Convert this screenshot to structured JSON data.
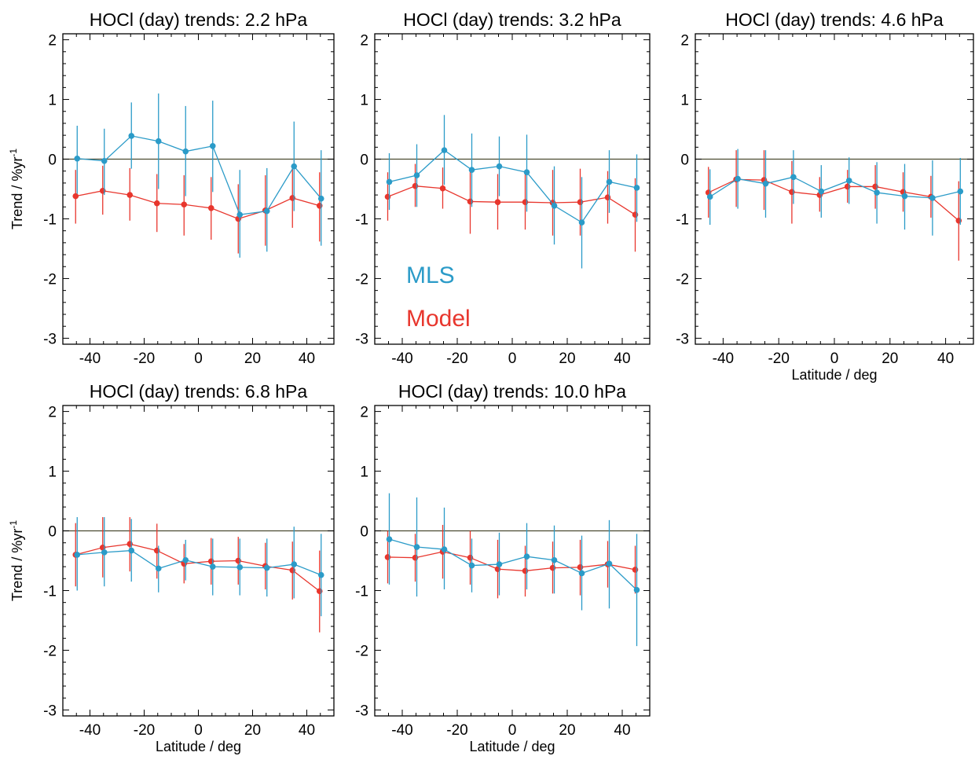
{
  "colors": {
    "mls": "#2b9bc8",
    "model": "#e8362d",
    "zero_line": "#4a4a30",
    "frame": "#000000"
  },
  "legend": {
    "mls": "MLS",
    "model": "Model"
  },
  "chart_data": [
    {
      "type": "line",
      "title": "HOCl (day) trends: 2.2 hPa",
      "xlabel": "",
      "ylabel": "Trend / %yr",
      "ylabel_sup": "-1",
      "xlim": [
        -50,
        50
      ],
      "ylim": [
        -3.1,
        2.1
      ],
      "xticks": [
        -40,
        -20,
        0,
        20,
        40
      ],
      "yticks": [
        -3,
        -2,
        -1,
        0,
        1,
        2
      ],
      "grid": false,
      "x": [
        -45,
        -35,
        -25,
        -15,
        -5,
        5,
        15,
        25,
        35,
        45
      ],
      "series": [
        {
          "key": "mls",
          "name": "MLS",
          "values": [
            0.01,
            -0.03,
            0.39,
            0.3,
            0.13,
            0.22,
            -0.93,
            -0.87,
            -0.12,
            -0.66
          ],
          "err_low": [
            -0.58,
            -0.6,
            -0.16,
            -0.5,
            -0.62,
            -0.55,
            -1.65,
            -1.55,
            -0.87,
            -1.45
          ],
          "err_high": [
            0.56,
            0.51,
            0.95,
            1.1,
            0.89,
            0.98,
            -0.18,
            -0.15,
            0.63,
            0.15
          ]
        },
        {
          "key": "model",
          "name": "Model",
          "values": [
            -0.62,
            -0.53,
            -0.6,
            -0.74,
            -0.76,
            -0.82,
            -1.0,
            -0.86,
            -0.65,
            -0.78
          ],
          "err_low": [
            -1.08,
            -0.93,
            -1.03,
            -1.22,
            -1.28,
            -1.35,
            -1.58,
            -1.45,
            -1.15,
            -1.38
          ],
          "err_high": [
            -0.18,
            -0.11,
            -0.15,
            -0.25,
            -0.27,
            -0.3,
            -0.42,
            -0.27,
            -0.14,
            -0.22
          ]
        }
      ]
    },
    {
      "type": "line",
      "title": "HOCl (day) trends: 3.2 hPa",
      "xlabel": "",
      "ylabel": "",
      "xlim": [
        -50,
        50
      ],
      "ylim": [
        -3.1,
        2.1
      ],
      "xticks": [
        -40,
        -20,
        0,
        20,
        40
      ],
      "yticks": [
        -3,
        -2,
        -1,
        0,
        1,
        2
      ],
      "grid": false,
      "x": [
        -45,
        -35,
        -25,
        -15,
        -5,
        5,
        15,
        25,
        35,
        45
      ],
      "series": [
        {
          "key": "mls",
          "name": "MLS",
          "values": [
            -0.38,
            -0.27,
            0.15,
            -0.18,
            -0.12,
            -0.22,
            -0.78,
            -1.06,
            -0.38,
            -0.48
          ],
          "err_low": [
            -0.85,
            -0.8,
            -0.43,
            -0.8,
            -0.62,
            -0.88,
            -1.43,
            -1.83,
            -0.9,
            -1.05
          ],
          "err_high": [
            0.1,
            0.25,
            0.74,
            0.43,
            0.38,
            0.41,
            -0.12,
            -0.3,
            0.15,
            0.08
          ]
        },
        {
          "key": "model",
          "name": "Model",
          "values": [
            -0.63,
            -0.45,
            -0.49,
            -0.71,
            -0.72,
            -0.72,
            -0.73,
            -0.72,
            -0.64,
            -0.93
          ],
          "err_low": [
            -1.03,
            -0.8,
            -0.83,
            -1.25,
            -1.18,
            -1.18,
            -1.28,
            -1.28,
            -1.08,
            -1.55
          ],
          "err_high": [
            -0.22,
            -0.08,
            -0.14,
            -0.18,
            -0.25,
            -0.25,
            -0.18,
            -0.16,
            -0.2,
            -0.32
          ]
        }
      ]
    },
    {
      "type": "line",
      "title": "HOCl (day) trends: 4.6 hPa",
      "xlabel": "Latitude / deg",
      "ylabel": "",
      "xlim": [
        -50,
        50
      ],
      "ylim": [
        -3.1,
        2.1
      ],
      "xticks": [
        -40,
        -20,
        0,
        20,
        40
      ],
      "yticks": [
        -3,
        -2,
        -1,
        0,
        1,
        2
      ],
      "grid": false,
      "x": [
        -45,
        -35,
        -25,
        -15,
        -5,
        5,
        15,
        25,
        35,
        45
      ],
      "series": [
        {
          "key": "mls",
          "name": "MLS",
          "values": [
            -0.63,
            -0.33,
            -0.41,
            -0.3,
            -0.54,
            -0.36,
            -0.56,
            -0.62,
            -0.65,
            -0.54
          ],
          "err_low": [
            -1.1,
            -0.83,
            -0.98,
            -0.75,
            -0.98,
            -0.75,
            -1.08,
            -1.18,
            -1.28,
            -1.1
          ],
          "err_high": [
            -0.17,
            0.17,
            0.15,
            0.15,
            -0.1,
            0.03,
            -0.05,
            -0.08,
            -0.02,
            0.02
          ]
        },
        {
          "key": "model",
          "name": "Model",
          "values": [
            -0.56,
            -0.34,
            -0.35,
            -0.55,
            -0.6,
            -0.46,
            -0.46,
            -0.55,
            -0.63,
            -1.03
          ],
          "err_low": [
            -0.98,
            -0.8,
            -0.85,
            -1.08,
            -0.88,
            -0.73,
            -0.83,
            -0.88,
            -0.98,
            -1.7
          ],
          "err_high": [
            -0.13,
            0.15,
            0.15,
            -0.03,
            -0.3,
            -0.18,
            -0.1,
            -0.22,
            -0.28,
            -0.37
          ]
        }
      ]
    },
    {
      "type": "line",
      "title": "HOCl (day) trends: 6.8 hPa",
      "xlabel": "Latitude / deg",
      "ylabel": "Trend / %yr",
      "ylabel_sup": "-1",
      "xlim": [
        -50,
        50
      ],
      "ylim": [
        -3.1,
        2.1
      ],
      "xticks": [
        -40,
        -20,
        0,
        20,
        40
      ],
      "yticks": [
        -3,
        -2,
        -1,
        0,
        1,
        2
      ],
      "grid": false,
      "x": [
        -45,
        -35,
        -25,
        -15,
        -5,
        5,
        15,
        25,
        35,
        45
      ],
      "series": [
        {
          "key": "mls",
          "name": "MLS",
          "values": [
            -0.4,
            -0.36,
            -0.33,
            -0.63,
            -0.49,
            -0.6,
            -0.61,
            -0.62,
            -0.56,
            -0.74
          ],
          "err_low": [
            -1.0,
            -0.93,
            -0.85,
            -1.03,
            -0.83,
            -1.08,
            -1.08,
            -1.1,
            -1.13,
            -1.43
          ],
          "err_high": [
            0.23,
            0.23,
            0.2,
            -0.25,
            -0.15,
            -0.13,
            -0.13,
            -0.13,
            0.07,
            -0.05
          ]
        },
        {
          "key": "model",
          "name": "Model",
          "values": [
            -0.4,
            -0.28,
            -0.22,
            -0.33,
            -0.55,
            -0.51,
            -0.5,
            -0.59,
            -0.66,
            -1.01
          ],
          "err_low": [
            -0.93,
            -0.78,
            -0.68,
            -0.8,
            -0.88,
            -0.9,
            -0.9,
            -0.98,
            -1.15,
            -1.7
          ],
          "err_high": [
            0.13,
            0.23,
            0.23,
            0.12,
            -0.22,
            -0.12,
            -0.1,
            -0.2,
            -0.18,
            -0.33
          ]
        }
      ]
    },
    {
      "type": "line",
      "title": "HOCl (day) trends: 10.0 hPa",
      "xlabel": "Latitude / deg",
      "ylabel": "",
      "xlim": [
        -50,
        50
      ],
      "ylim": [
        -3.1,
        2.1
      ],
      "xticks": [
        -40,
        -20,
        0,
        20,
        40
      ],
      "yticks": [
        -3,
        -2,
        -1,
        0,
        1,
        2
      ],
      "grid": false,
      "x": [
        -45,
        -35,
        -25,
        -15,
        -5,
        5,
        15,
        25,
        35,
        45
      ],
      "series": [
        {
          "key": "mls",
          "name": "MLS",
          "values": [
            -0.14,
            -0.27,
            -0.31,
            -0.58,
            -0.56,
            -0.43,
            -0.49,
            -0.71,
            -0.55,
            -0.99
          ],
          "err_low": [
            -0.9,
            -1.1,
            -0.98,
            -1.03,
            -1.08,
            -0.98,
            -1.05,
            -1.33,
            -1.3,
            -1.93
          ],
          "err_high": [
            0.63,
            0.56,
            0.39,
            -0.13,
            -0.03,
            0.13,
            0.09,
            -0.08,
            0.18,
            -0.05
          ]
        },
        {
          "key": "model",
          "name": "Model",
          "values": [
            -0.44,
            -0.45,
            -0.35,
            -0.45,
            -0.64,
            -0.67,
            -0.62,
            -0.61,
            -0.56,
            -0.65
          ],
          "err_low": [
            -0.88,
            -0.85,
            -0.8,
            -0.9,
            -1.13,
            -1.1,
            -1.05,
            -1.08,
            -0.95,
            -1.05
          ],
          "err_high": [
            0.0,
            -0.05,
            0.1,
            0.0,
            -0.15,
            -0.25,
            -0.18,
            -0.15,
            -0.17,
            -0.25
          ]
        }
      ]
    }
  ]
}
